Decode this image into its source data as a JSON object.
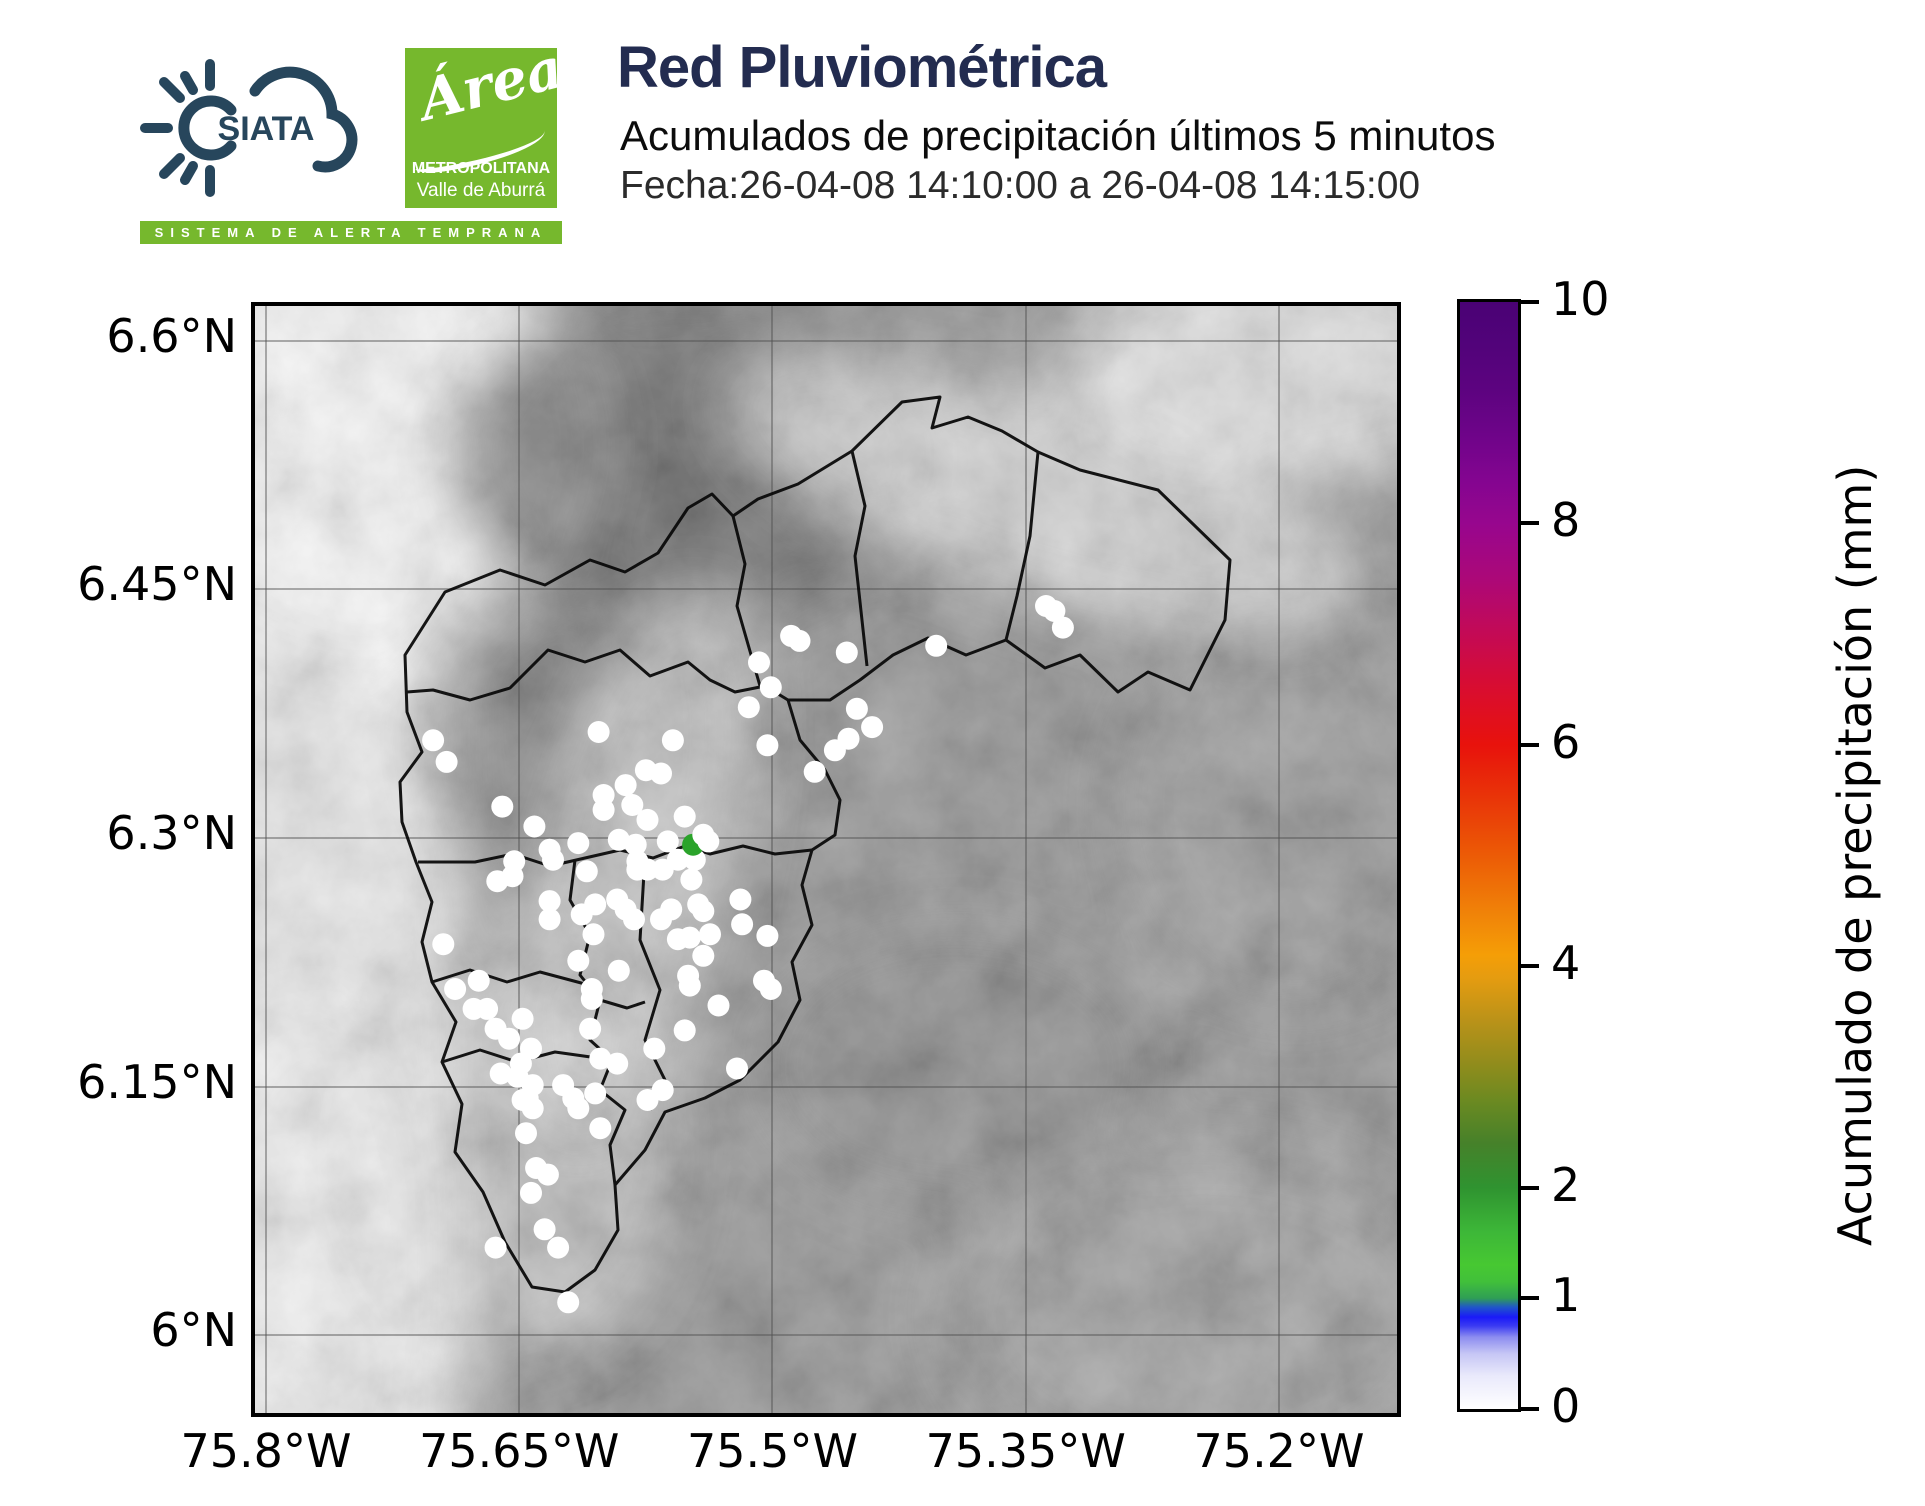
{
  "header": {
    "siata_logo_text": "SIATA",
    "siata_banner": "SISTEMA DE ALERTA TEMPRANA",
    "area_logo": {
      "script": "Área",
      "line1": "METROPOLITANA",
      "line2": "Valle de Aburrá"
    },
    "title": "Red Pluviométrica",
    "subtitle": "Acumulados de precipitación últimos 5 minutos",
    "date_line": "Fecha:26-04-08 14:10:00 a 26-04-08 14:15:00"
  },
  "colors": {
    "brand_navy": "#232c50",
    "logo_slate": "#27465c",
    "brand_green": "#76b82d",
    "station_white": "#ffffff",
    "station_highlight_green": "#2aa32a",
    "terrain_base_gray": "#8d8d8d"
  },
  "map": {
    "extent": {
      "lon_min": -75.8065,
      "lon_max": -75.1301,
      "lat_min": 5.9532,
      "lat_max": 6.621
    },
    "x_ticks": [
      {
        "lon": -75.8,
        "label": "75.8°W"
      },
      {
        "lon": -75.65,
        "label": "75.65°W"
      },
      {
        "lon": -75.5,
        "label": "75.5°W"
      },
      {
        "lon": -75.35,
        "label": "75.35°W"
      },
      {
        "lon": -75.2,
        "label": "75.2°W"
      }
    ],
    "y_ticks": [
      {
        "lat": 6.6,
        "label": "6.6°N"
      },
      {
        "lat": 6.45,
        "label": "6.45°N"
      },
      {
        "lat": 6.3,
        "label": "6.3°N"
      },
      {
        "lat": 6.15,
        "label": "6.15°N"
      },
      {
        "lat": 6.0,
        "label": "6°N"
      }
    ]
  },
  "colorbar": {
    "label": "Acumulado de precipitación (mm)",
    "min": 0,
    "max": 10,
    "ticks": [
      0,
      1,
      2,
      4,
      6,
      8,
      10
    ],
    "gradient": [
      [
        0,
        "#ffffff"
      ],
      [
        3,
        "#e9e9fb"
      ],
      [
        5,
        "#c6c6f5"
      ],
      [
        6.5,
        "#8c8cf0"
      ],
      [
        7.5,
        "#3b3bf2"
      ],
      [
        8.3,
        "#1a1af8"
      ],
      [
        9.2,
        "#2057c8"
      ],
      [
        10,
        "#2f9e55"
      ],
      [
        11.5,
        "#41c03a"
      ],
      [
        13,
        "#47c832"
      ],
      [
        16,
        "#3db738"
      ],
      [
        20,
        "#2f9330"
      ],
      [
        24,
        "#46812a"
      ],
      [
        28,
        "#6d8a21"
      ],
      [
        31,
        "#8f8c1c"
      ],
      [
        35,
        "#b99219"
      ],
      [
        39,
        "#e59c10"
      ],
      [
        41,
        "#f59e07"
      ],
      [
        45,
        "#f08108"
      ],
      [
        50,
        "#ec5b06"
      ],
      [
        55,
        "#e93608"
      ],
      [
        60,
        "#e8120c"
      ],
      [
        65,
        "#d90d2f"
      ],
      [
        70,
        "#c40a55"
      ],
      [
        75,
        "#ac0878"
      ],
      [
        80,
        "#97068e"
      ],
      [
        84,
        "#830590"
      ],
      [
        88,
        "#6e0489"
      ],
      [
        92,
        "#5d0380"
      ],
      [
        96,
        "#52037a"
      ],
      [
        100,
        "#4a0275"
      ]
    ]
  },
  "chart_data": {
    "type": "scatter",
    "title": "Red Pluviométrica",
    "subtitle": "Acumulados de precipitación últimos 5 minutos",
    "colorbar_label": "Acumulado de precipitación (mm)",
    "value_range_mm": [
      0,
      10
    ],
    "basemap": "grayscale elevation relief with municipality boundaries",
    "marker": "circle",
    "default_marker_color": "#ffffff",
    "stations_lon_lat": [
      [
        -75.489,
        6.422
      ],
      [
        -75.484,
        6.419
      ],
      [
        -75.456,
        6.412
      ],
      [
        -75.403,
        6.416
      ],
      [
        -75.338,
        6.44
      ],
      [
        -75.333,
        6.437
      ],
      [
        -75.328,
        6.427
      ],
      [
        -75.508,
        6.406
      ],
      [
        -75.501,
        6.391
      ],
      [
        -75.514,
        6.379
      ],
      [
        -75.45,
        6.378
      ],
      [
        -75.441,
        6.367
      ],
      [
        -75.455,
        6.36
      ],
      [
        -75.463,
        6.353
      ],
      [
        -75.503,
        6.356
      ],
      [
        -75.475,
        6.34
      ],
      [
        -75.603,
        6.364
      ],
      [
        -75.559,
        6.359
      ],
      [
        -75.701,
        6.359
      ],
      [
        -75.693,
        6.346
      ],
      [
        -75.575,
        6.341
      ],
      [
        -75.566,
        6.339
      ],
      [
        -75.587,
        6.332
      ],
      [
        -75.6,
        6.326
      ],
      [
        -75.6,
        6.317
      ],
      [
        -75.583,
        6.32
      ],
      [
        -75.574,
        6.311
      ],
      [
        -75.552,
        6.313
      ],
      [
        -75.66,
        6.319
      ],
      [
        -75.641,
        6.307
      ],
      [
        -75.632,
        6.293
      ],
      [
        -75.615,
        6.297
      ],
      [
        -75.591,
        6.299
      ],
      [
        -75.581,
        6.296
      ],
      [
        -75.562,
        6.298
      ],
      [
        -75.556,
        6.287
      ],
      [
        -75.546,
        6.287
      ],
      [
        -75.58,
        6.281
      ],
      [
        -75.61,
        6.28
      ],
      [
        -75.663,
        6.274
      ],
      [
        -75.654,
        6.277
      ],
      [
        -75.653,
        6.286
      ],
      [
        -75.63,
        6.287
      ],
      [
        -75.632,
        6.262
      ],
      [
        -75.632,
        6.251
      ],
      [
        -75.605,
        6.26
      ],
      [
        -75.613,
        6.254
      ],
      [
        -75.592,
        6.263
      ],
      [
        -75.587,
        6.257
      ],
      [
        -75.582,
        6.251
      ],
      [
        -75.58,
        6.286
      ],
      [
        -75.574,
        6.281
      ],
      [
        -75.565,
        6.281
      ],
      [
        -75.56,
        6.257
      ],
      [
        -75.566,
        6.251
      ],
      [
        -75.548,
        6.275
      ],
      [
        -75.544,
        6.26
      ],
      [
        -75.541,
        6.256
      ],
      [
        -75.537,
        6.242
      ],
      [
        -75.549,
        6.24
      ],
      [
        -75.556,
        6.239
      ],
      [
        -75.519,
        6.263
      ],
      [
        -75.518,
        6.248
      ],
      [
        -75.503,
        6.241
      ],
      [
        -75.541,
        6.229
      ],
      [
        -75.591,
        6.22
      ],
      [
        -75.606,
        6.242
      ],
      [
        -75.615,
        6.226
      ],
      [
        -75.695,
        6.236
      ],
      [
        -75.688,
        6.209
      ],
      [
        -75.674,
        6.214
      ],
      [
        -75.607,
        6.209
      ],
      [
        -75.607,
        6.203
      ],
      [
        -75.608,
        6.185
      ],
      [
        -75.602,
        6.167
      ],
      [
        -75.592,
        6.164
      ],
      [
        -75.55,
        6.217
      ],
      [
        -75.549,
        6.211
      ],
      [
        -75.532,
        6.199
      ],
      [
        -75.505,
        6.214
      ],
      [
        -75.501,
        6.209
      ],
      [
        -75.552,
        6.184
      ],
      [
        -75.57,
        6.173
      ],
      [
        -75.521,
        6.161
      ],
      [
        -75.677,
        6.197
      ],
      [
        -75.669,
        6.197
      ],
      [
        -75.664,
        6.185
      ],
      [
        -75.656,
        6.179
      ],
      [
        -75.648,
        6.191
      ],
      [
        -75.643,
        6.173
      ],
      [
        -75.649,
        6.164
      ],
      [
        -75.661,
        6.158
      ],
      [
        -75.651,
        6.156
      ],
      [
        -75.642,
        6.151
      ],
      [
        -75.645,
        6.143
      ],
      [
        -75.642,
        6.137
      ],
      [
        -75.648,
        6.142
      ],
      [
        -75.624,
        6.151
      ],
      [
        -75.618,
        6.143
      ],
      [
        -75.615,
        6.137
      ],
      [
        -75.605,
        6.146
      ],
      [
        -75.602,
        6.125
      ],
      [
        -75.574,
        6.142
      ],
      [
        -75.565,
        6.148
      ],
      [
        -75.646,
        6.122
      ],
      [
        -75.64,
        6.101
      ],
      [
        -75.633,
        6.097
      ],
      [
        -75.643,
        6.086
      ],
      [
        -75.635,
        6.064
      ],
      [
        -75.627,
        6.053
      ],
      [
        -75.664,
        6.053
      ],
      [
        -75.621,
        6.02
      ],
      [
        -75.547,
        6.296,
        "#2aa32a"
      ],
      [
        -75.541,
        6.302
      ],
      [
        -75.538,
        6.298
      ]
    ]
  }
}
